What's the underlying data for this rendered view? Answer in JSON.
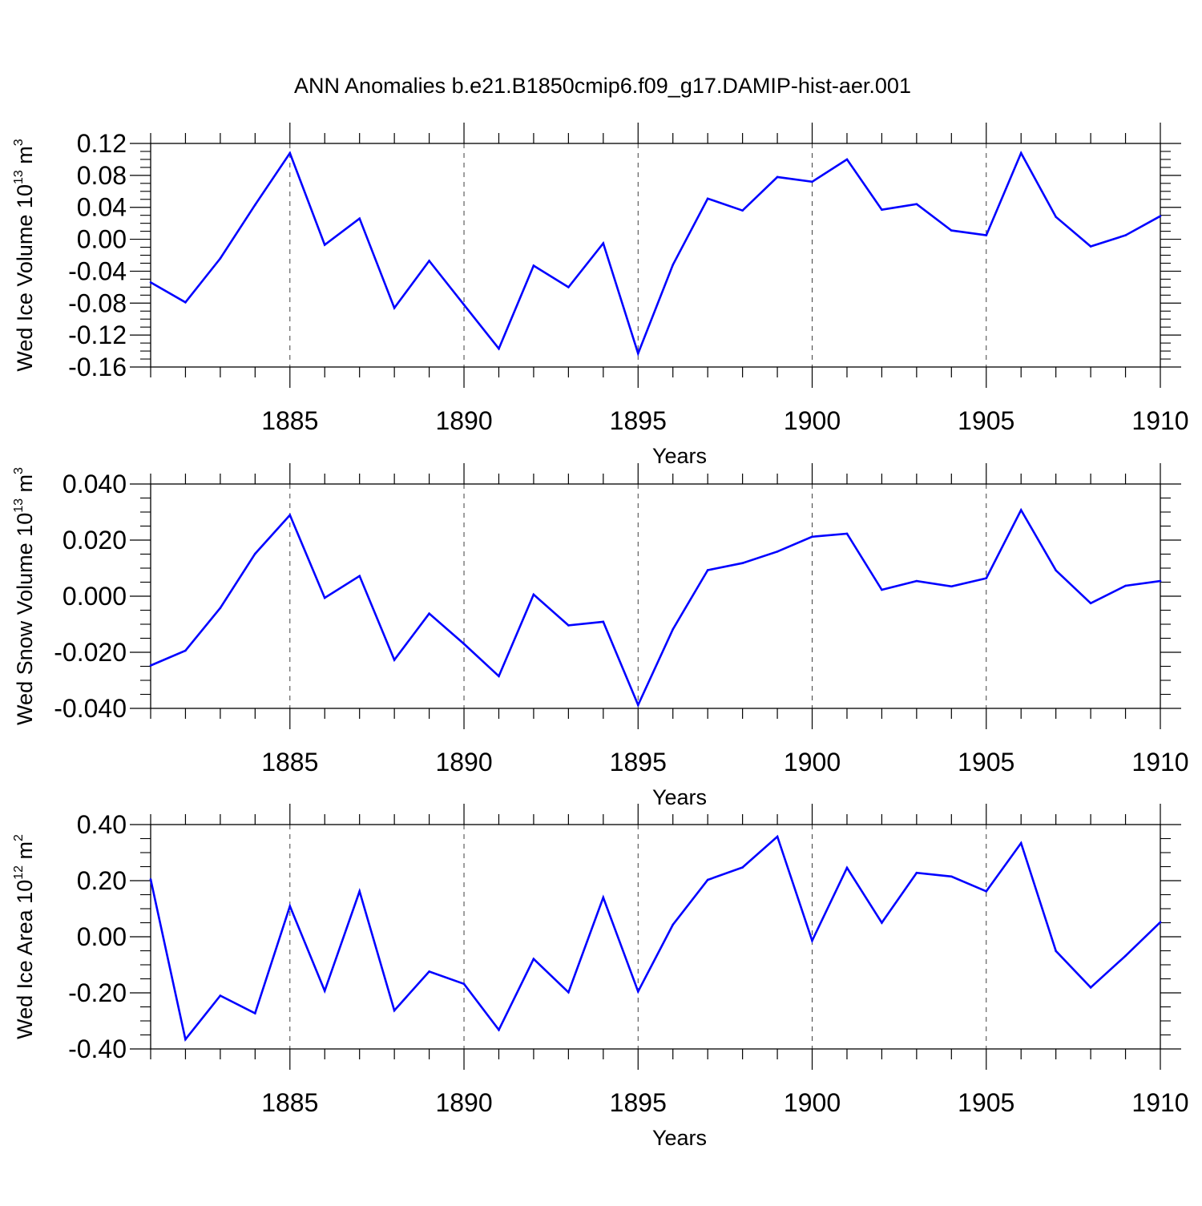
{
  "figure": {
    "title": "ANN Anomalies b.e21.B1850cmip6.f09_g17.DAMIP-hist-aer.001"
  },
  "chart_data": [
    {
      "type": "line",
      "ylabel": {
        "text": "Wed Ice Volume 10",
        "exp": "13",
        "unit": " m",
        "unit_exp": "3"
      },
      "xlabel": "Years",
      "xlim": [
        1881,
        1910
      ],
      "ylim": [
        -0.16,
        0.12
      ],
      "x_ticks": [
        1885,
        1890,
        1895,
        1900,
        1905,
        1910
      ],
      "x_tick_labels": [
        "1885",
        "1890",
        "1895",
        "1900",
        "1905",
        "1910"
      ],
      "y_ticks": [
        -0.16,
        -0.12,
        -0.08,
        -0.04,
        0.0,
        0.04,
        0.08,
        0.12
      ],
      "y_tick_labels": [
        "-0.16",
        "-0.12",
        "-0.08",
        "-0.04",
        "0.00",
        "0.04",
        "0.08",
        "0.12"
      ],
      "color": "#0000ff",
      "series": [
        {
          "name": "Wed Ice Volume",
          "x": [
            1881,
            1882,
            1883,
            1884,
            1885,
            1886,
            1887,
            1888,
            1889,
            1890,
            1891,
            1892,
            1893,
            1894,
            1895,
            1896,
            1897,
            1898,
            1899,
            1900,
            1901,
            1902,
            1903,
            1904,
            1905,
            1906,
            1907,
            1908,
            1909,
            1910
          ],
          "values": [
            -0.054,
            -0.079,
            -0.024,
            0.043,
            0.108,
            -0.007,
            0.026,
            -0.086,
            -0.027,
            -0.082,
            -0.137,
            -0.033,
            -0.06,
            -0.005,
            -0.143,
            -0.032,
            0.051,
            0.036,
            0.078,
            0.072,
            0.1,
            0.037,
            0.044,
            0.011,
            0.005,
            0.108,
            0.028,
            -0.009,
            0.005,
            0.029
          ]
        }
      ]
    },
    {
      "type": "line",
      "ylabel": {
        "text": "Wed Snow Volume 10",
        "exp": "13",
        "unit": " m",
        "unit_exp": "3"
      },
      "xlabel": "Years",
      "xlim": [
        1881,
        1910
      ],
      "ylim": [
        -0.04,
        0.04
      ],
      "x_ticks": [
        1885,
        1890,
        1895,
        1900,
        1905,
        1910
      ],
      "x_tick_labels": [
        "1885",
        "1890",
        "1895",
        "1900",
        "1905",
        "1910"
      ],
      "y_ticks": [
        -0.04,
        -0.02,
        0.0,
        0.02,
        0.04
      ],
      "y_tick_labels": [
        "-0.040",
        "-0.020",
        "0.000",
        "0.020",
        "0.040"
      ],
      "color": "#0000ff",
      "series": [
        {
          "name": "Wed Snow Volume",
          "x": [
            1881,
            1882,
            1883,
            1884,
            1885,
            1886,
            1887,
            1888,
            1889,
            1890,
            1891,
            1892,
            1893,
            1894,
            1895,
            1896,
            1897,
            1898,
            1899,
            1900,
            1901,
            1902,
            1903,
            1904,
            1905,
            1906,
            1907,
            1908,
            1909,
            1910
          ],
          "values": [
            -0.0247,
            -0.0194,
            -0.0042,
            0.0151,
            0.0289,
            -0.0006,
            0.0072,
            -0.0227,
            -0.0062,
            -0.017,
            -0.0285,
            0.0006,
            -0.0104,
            -0.0091,
            -0.0388,
            -0.0118,
            0.0093,
            0.0118,
            0.0159,
            0.0212,
            0.0223,
            0.0023,
            0.0054,
            0.0035,
            0.0064,
            0.0307,
            0.0092,
            -0.0025,
            0.0037,
            0.0054
          ]
        }
      ]
    },
    {
      "type": "line",
      "ylabel": {
        "text": "Wed Ice Area 10",
        "exp": "12",
        "unit": " m",
        "unit_exp": "2"
      },
      "xlabel": "Years",
      "xlim": [
        1881,
        1910
      ],
      "ylim": [
        -0.4,
        0.4
      ],
      "x_ticks": [
        1885,
        1890,
        1895,
        1900,
        1905,
        1910
      ],
      "x_tick_labels": [
        "1885",
        "1890",
        "1895",
        "1900",
        "1905",
        "1910"
      ],
      "y_ticks": [
        -0.4,
        -0.2,
        0.0,
        0.2,
        0.4
      ],
      "y_tick_labels": [
        "-0.40",
        "-0.20",
        "0.00",
        "0.20",
        "0.40"
      ],
      "color": "#0000ff",
      "series": [
        {
          "name": "Wed Ice Area",
          "x": [
            1881,
            1882,
            1883,
            1884,
            1885,
            1886,
            1887,
            1888,
            1889,
            1890,
            1891,
            1892,
            1893,
            1894,
            1895,
            1896,
            1897,
            1898,
            1899,
            1900,
            1901,
            1902,
            1903,
            1904,
            1905,
            1906,
            1907,
            1908,
            1909,
            1910
          ],
          "values": [
            0.205,
            -0.366,
            -0.21,
            -0.273,
            0.109,
            -0.193,
            0.162,
            -0.263,
            -0.124,
            -0.168,
            -0.332,
            -0.079,
            -0.198,
            0.14,
            -0.195,
            0.043,
            0.203,
            0.247,
            0.357,
            -0.014,
            0.246,
            0.05,
            0.228,
            0.215,
            0.162,
            0.334,
            -0.051,
            -0.181,
            -0.068,
            0.052
          ]
        }
      ]
    }
  ]
}
